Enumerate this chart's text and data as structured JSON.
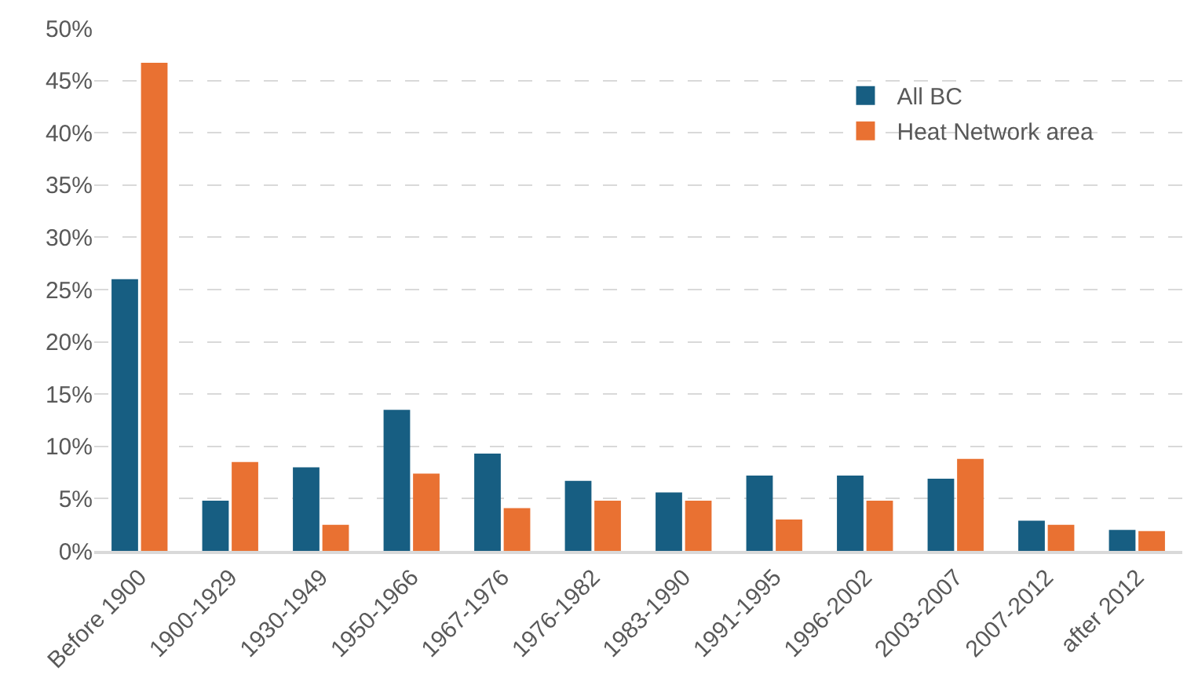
{
  "chart_data": {
    "type": "bar",
    "categories": [
      "Before 1900",
      "1900-1929",
      "1930-1949",
      "1950-1966",
      "1967-1976",
      "1976-1982",
      "1983-1990",
      "1991-1995",
      "1996-2002",
      "2003-2007",
      "2007-2012",
      "after 2012"
    ],
    "series": [
      {
        "name": "All BC",
        "color": "#175e82",
        "values": [
          26.0,
          4.8,
          8.0,
          13.5,
          9.3,
          6.7,
          5.6,
          7.2,
          7.2,
          6.9,
          2.9,
          2.0
        ]
      },
      {
        "name": "Heat Network area",
        "color": "#e97132",
        "values": [
          46.7,
          8.5,
          2.5,
          7.4,
          4.1,
          4.8,
          4.8,
          3.0,
          4.8,
          8.8,
          2.5,
          1.9
        ]
      }
    ],
    "ylim": [
      0,
      50
    ],
    "yticks": [
      {
        "value": 0,
        "label": "0%"
      },
      {
        "value": 5,
        "label": "5%"
      },
      {
        "value": 10,
        "label": "10%"
      },
      {
        "value": 15,
        "label": "15%"
      },
      {
        "value": 20,
        "label": "20%"
      },
      {
        "value": 25,
        "label": "25%"
      },
      {
        "value": 30,
        "label": "30%"
      },
      {
        "value": 35,
        "label": "35%"
      },
      {
        "value": 40,
        "label": "40%"
      },
      {
        "value": 45,
        "label": "45%"
      },
      {
        "value": 50,
        "label": "50%"
      }
    ],
    "grid": "y",
    "legend": "top right"
  }
}
